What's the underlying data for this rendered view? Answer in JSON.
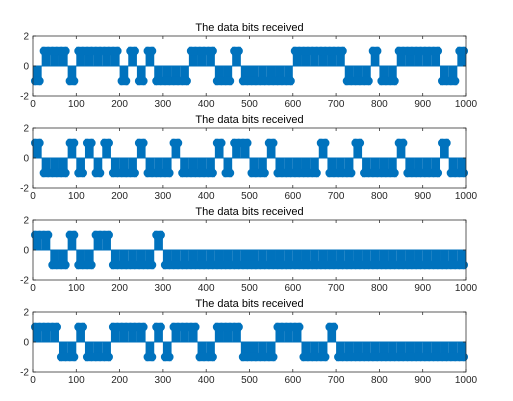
{
  "figure": {
    "background": "#ffffff",
    "series_color": "#0072BD",
    "axis_color": "#262626"
  },
  "chart_data": [
    {
      "type": "bar",
      "title": "The data bits received",
      "xlim": [
        0,
        1000
      ],
      "ylim": [
        -2,
        2
      ],
      "xticks": [
        "0",
        "100",
        "200",
        "300",
        "400",
        "500",
        "600",
        "700",
        "800",
        "900",
        "1000"
      ],
      "yticks": [
        "2",
        "0",
        "-2"
      ],
      "bit_width": 20,
      "bits": [
        -1,
        1,
        1,
        1,
        -1,
        1,
        1,
        1,
        1,
        1,
        -1,
        1,
        -1,
        1,
        -1,
        -1,
        -1,
        -1,
        1,
        1,
        1,
        -1,
        -1,
        1,
        -1,
        -1,
        -1,
        -1,
        -1,
        -1,
        1,
        1,
        1,
        1,
        1,
        1,
        -1,
        -1,
        -1,
        1,
        -1,
        -1,
        1,
        1,
        1,
        1,
        1,
        -1,
        -1,
        1,
        1,
        1
      ]
    },
    {
      "type": "bar",
      "title": "The data bits received",
      "xlim": [
        0,
        1000
      ],
      "ylim": [
        -2,
        2
      ],
      "xticks": [
        "0",
        "100",
        "200",
        "300",
        "400",
        "500",
        "600",
        "700",
        "800",
        "900",
        "1000"
      ],
      "yticks": [
        "2",
        "0",
        "-2"
      ],
      "bit_width": 20,
      "bits": [
        1,
        -1,
        -1,
        -1,
        1,
        -1,
        1,
        -1,
        1,
        -1,
        -1,
        -1,
        1,
        -1,
        -1,
        -1,
        1,
        -1,
        -1,
        -1,
        -1,
        1,
        -1,
        1,
        1,
        -1,
        -1,
        1,
        -1,
        -1,
        -1,
        -1,
        -1,
        1,
        -1,
        -1,
        -1,
        1,
        -1,
        -1,
        -1,
        -1,
        1,
        -1,
        -1,
        -1,
        -1,
        1,
        -1,
        -1,
        -1,
        -1
      ]
    },
    {
      "type": "bar",
      "title": "The data bits received",
      "xlim": [
        0,
        1000
      ],
      "ylim": [
        -2,
        2
      ],
      "xticks": [
        "0",
        "100",
        "200",
        "300",
        "400",
        "500",
        "600",
        "700",
        "800",
        "900",
        "1000"
      ],
      "yticks": [
        "2",
        "0",
        "-2"
      ],
      "bit_width": 20,
      "bits": [
        1,
        1,
        -1,
        -1,
        1,
        -1,
        -1,
        1,
        1,
        -1,
        -1,
        -1,
        -1,
        -1,
        1,
        -1,
        -1,
        -1,
        -1,
        -1,
        -1,
        -1,
        -1,
        -1,
        -1,
        -1,
        -1,
        -1,
        -1,
        -1,
        -1,
        -1,
        -1,
        -1,
        -1,
        -1,
        -1,
        -1,
        -1,
        -1,
        -1,
        -1,
        -1,
        -1,
        -1,
        -1,
        -1,
        -1,
        -1,
        -1,
        -1,
        -1
      ]
    },
    {
      "type": "bar",
      "title": "The data bits received",
      "xlim": [
        0,
        1000
      ],
      "ylim": [
        -2,
        2
      ],
      "xticks": [
        "0",
        "100",
        "200",
        "300",
        "400",
        "500",
        "600",
        "700",
        "800",
        "900",
        "1000"
      ],
      "yticks": [
        "2",
        "0",
        "-2"
      ],
      "bit_width": 20,
      "bits": [
        1,
        1,
        1,
        -1,
        -1,
        1,
        -1,
        -1,
        -1,
        1,
        1,
        1,
        1,
        -1,
        1,
        -1,
        1,
        1,
        1,
        -1,
        -1,
        1,
        1,
        1,
        -1,
        -1,
        -1,
        -1,
        1,
        1,
        1,
        -1,
        -1,
        -1,
        1,
        -1,
        -1,
        -1,
        -1,
        -1,
        -1,
        -1,
        -1,
        -1,
        -1,
        -1,
        -1,
        -1,
        -1,
        -1,
        -1,
        -1
      ]
    }
  ]
}
